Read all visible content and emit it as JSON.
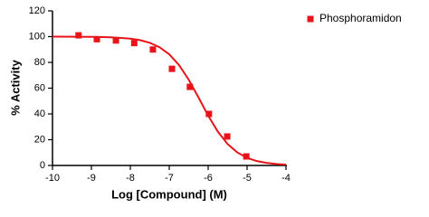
{
  "chart_data": {
    "type": "scatter",
    "x_label": "Log [Compound] (M)",
    "y_label": "% Activity",
    "xlim": [
      -10,
      -4
    ],
    "xticks": [
      -10,
      -9,
      -8,
      -7,
      -6,
      -5,
      -4
    ],
    "ylim": [
      0,
      120
    ],
    "yticks": [
      0,
      20,
      40,
      60,
      80,
      100,
      120
    ],
    "legend": "top-right",
    "series": [
      {
        "name": "Phosphoramidon",
        "color": "#e8141a",
        "x": [
          -9.33,
          -8.86,
          -8.37,
          -7.9,
          -7.42,
          -6.93,
          -6.47,
          -5.98,
          -5.51,
          -5.02
        ],
        "values": [
          101,
          98,
          97,
          95,
          90,
          75,
          61,
          40,
          22.5,
          7
        ]
      }
    ],
    "fit_curve": {
      "color": "#e8141a",
      "x": [
        -10,
        -9.5,
        -9,
        -8.5,
        -8,
        -7.75,
        -7.5,
        -7.25,
        -7,
        -6.75,
        -6.5,
        -6.25,
        -6,
        -5.75,
        -5.5,
        -5.25,
        -5,
        -4.75,
        -4.5,
        -4.25,
        -4
      ],
      "values": [
        100,
        99.95,
        99.8,
        99.5,
        98.4,
        97.3,
        95.2,
        91.8,
        86.3,
        78.0,
        66.6,
        52.9,
        38.7,
        26.2,
        16.6,
        10.1,
        5.9,
        3.4,
        2.0,
        1.1,
        0.6
      ]
    }
  }
}
